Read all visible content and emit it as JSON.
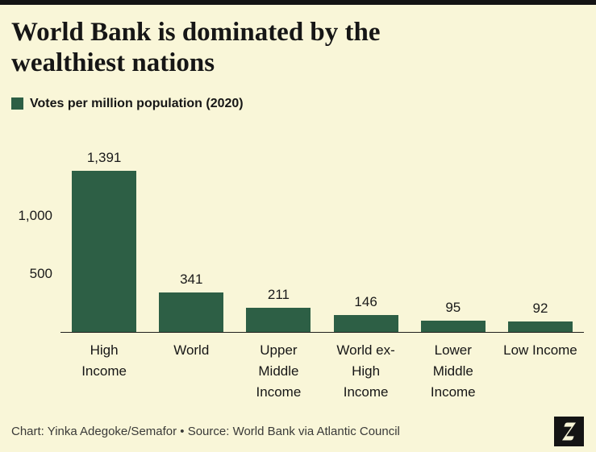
{
  "page": {
    "background": "#f9f6d8",
    "top_bar_color": "#141414"
  },
  "title": "World Bank is dominated by the wealthiest nations",
  "legend": {
    "label": "Votes per million population (2020)",
    "swatch_color": "#2d5f45"
  },
  "chart_data": {
    "type": "bar",
    "title": "Votes per million population (2020)",
    "categories": [
      "High Income",
      "World",
      "Upper Middle Income",
      "World ex-High Income",
      "Lower Middle Income",
      "Low Income"
    ],
    "category_lines": [
      [
        "High",
        "Income"
      ],
      [
        "World"
      ],
      [
        "Upper",
        "Middle",
        "Income"
      ],
      [
        "World ex-",
        "High",
        "Income"
      ],
      [
        "Lower",
        "Middle",
        "Income"
      ],
      [
        "Low Income"
      ]
    ],
    "values": [
      1391,
      341,
      211,
      146,
      95,
      92
    ],
    "value_labels": [
      "1,391",
      "341",
      "211",
      "146",
      "95",
      "92"
    ],
    "bar_color": "#2d5f45",
    "yticks": [
      500,
      1000
    ],
    "ytick_labels": [
      "500",
      "1,000"
    ],
    "ylim": [
      0,
      1450
    ],
    "xlabel": "",
    "ylabel": "",
    "grid": false,
    "legend_position": "top-left"
  },
  "footer": {
    "credit": "Chart: Yinka Adegoke/Semafor • Source: World Bank via Atlantic Council"
  },
  "logo": {
    "label": "Semafor logo",
    "background": "#141414",
    "glyph_color": "#f9f6d8"
  }
}
